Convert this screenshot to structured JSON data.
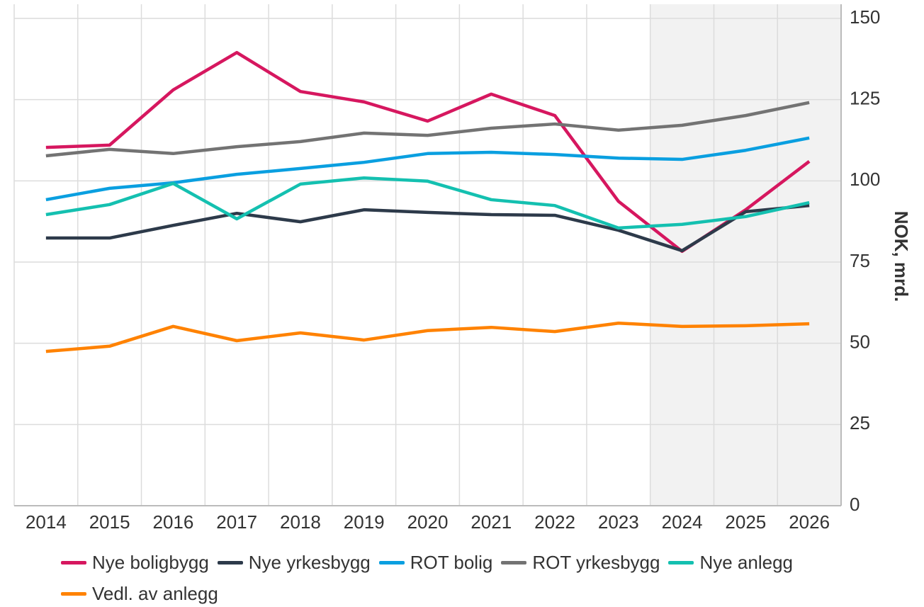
{
  "chart_data": {
    "type": "line",
    "y_axis_label": "NOK, mrd.",
    "categories": [
      "2014",
      "2015",
      "2016",
      "2017",
      "2018",
      "2019",
      "2020",
      "2021",
      "2022",
      "2023",
      "2024",
      "2025",
      "2026"
    ],
    "highlight_start": "2024",
    "ylim": [
      0,
      150
    ],
    "yticks": [
      0,
      25,
      50,
      75,
      100,
      125,
      150
    ],
    "grid": true,
    "series": [
      {
        "name": "Nye boligbygg",
        "color": "#d6175f",
        "values": [
          110.3,
          111,
          128,
          139.5,
          127.5,
          124.3,
          118.4,
          126.7,
          120.1,
          93.7,
          78.3,
          91.1,
          106
        ]
      },
      {
        "name": "Nye yrkesbygg",
        "color": "#2d3a4a",
        "values": [
          82.4,
          82.4,
          86.3,
          90,
          87.4,
          91.1,
          90.3,
          89.6,
          89.4,
          84.8,
          78.5,
          90.5,
          92.4
        ]
      },
      {
        "name": "ROT bolig",
        "color": "#0a9fe0",
        "values": [
          94.2,
          97.7,
          99.4,
          102,
          103.8,
          105.7,
          108.4,
          108.8,
          108.1,
          107,
          106.6,
          109.4,
          113.2
        ]
      },
      {
        "name": "ROT yrkesbygg",
        "color": "#737373",
        "values": [
          107.7,
          109.7,
          108.4,
          110.5,
          112.1,
          114.7,
          114,
          116.2,
          117.5,
          115.6,
          117.1,
          120.1,
          124.1
        ]
      },
      {
        "name": "Nye anlegg",
        "color": "#14c0b0",
        "values": [
          89.6,
          92.7,
          99.2,
          88.3,
          99,
          100.9,
          99.9,
          94.2,
          92.4,
          85.5,
          86.6,
          89,
          93.3
        ]
      },
      {
        "name": "Vedl. av anlegg",
        "color": "#ff8200",
        "values": [
          47.5,
          49.1,
          55.2,
          50.8,
          53.2,
          51,
          53.9,
          54.9,
          53.6,
          56.2,
          55.2,
          55.4,
          56
        ]
      }
    ]
  }
}
